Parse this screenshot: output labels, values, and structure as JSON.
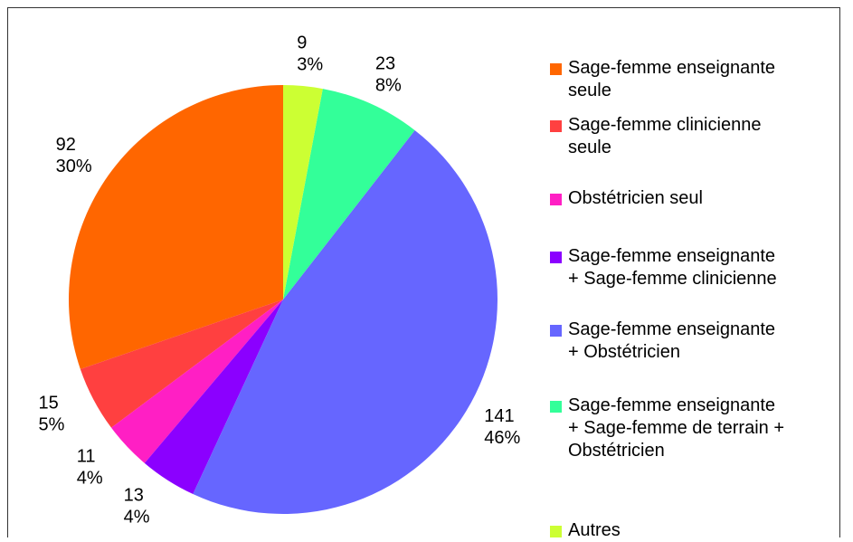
{
  "chart_data": {
    "type": "pie",
    "categories": [
      "Sage-femme enseignante\nseule",
      "Sage-femme clinicienne\nseule",
      "Obstétricien seul",
      "Sage-femme enseignante\n+ Sage-femme clinicienne",
      "Sage-femme enseignante\n+ Obstétricien",
      "Sage-femme enseignante\n+ Sage-femme de terrain +\nObstétricien",
      "Autres"
    ],
    "values": [
      92,
      15,
      11,
      13,
      141,
      23,
      9
    ],
    "percent_labels": [
      "30%",
      "5%",
      "4%",
      "4%",
      "46%",
      "8%",
      "3%"
    ],
    "colors": [
      "#ff6600",
      "#ff4040",
      "#ff1fc4",
      "#8b00ff",
      "#6666ff",
      "#33ff99",
      "#ccff33"
    ],
    "legend": "right"
  }
}
